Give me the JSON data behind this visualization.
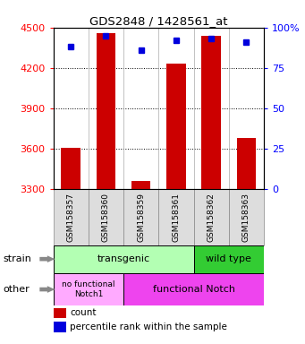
{
  "title": "GDS2848 / 1428561_at",
  "samples": [
    "GSM158357",
    "GSM158360",
    "GSM158359",
    "GSM158361",
    "GSM158362",
    "GSM158363"
  ],
  "counts": [
    3610,
    4460,
    3360,
    4230,
    4440,
    3680
  ],
  "percentiles": [
    88,
    95,
    86,
    92,
    93,
    91
  ],
  "ymin": 3300,
  "ymax": 4500,
  "yticks": [
    3300,
    3600,
    3900,
    4200,
    4500
  ],
  "pct_ticks": [
    0,
    25,
    50,
    75,
    100
  ],
  "bar_color": "#cc0000",
  "dot_color": "#0000dd",
  "bar_width": 0.55,
  "transgenic_label": "transgenic",
  "wildtype_label": "wild type",
  "nofunc_label": "no functional\nNotch1",
  "func_label": "functional Notch",
  "strain_row_label": "strain",
  "other_row_label": "other",
  "legend_count_label": "count",
  "legend_pct_label": "percentile rank within the sample",
  "transgenic_color": "#b3ffb3",
  "wildtype_color": "#33cc33",
  "nofunc_color": "#ffaaff",
  "func_color": "#ee44ee",
  "sample_box_color": "#dddddd",
  "background_color": "#ffffff"
}
